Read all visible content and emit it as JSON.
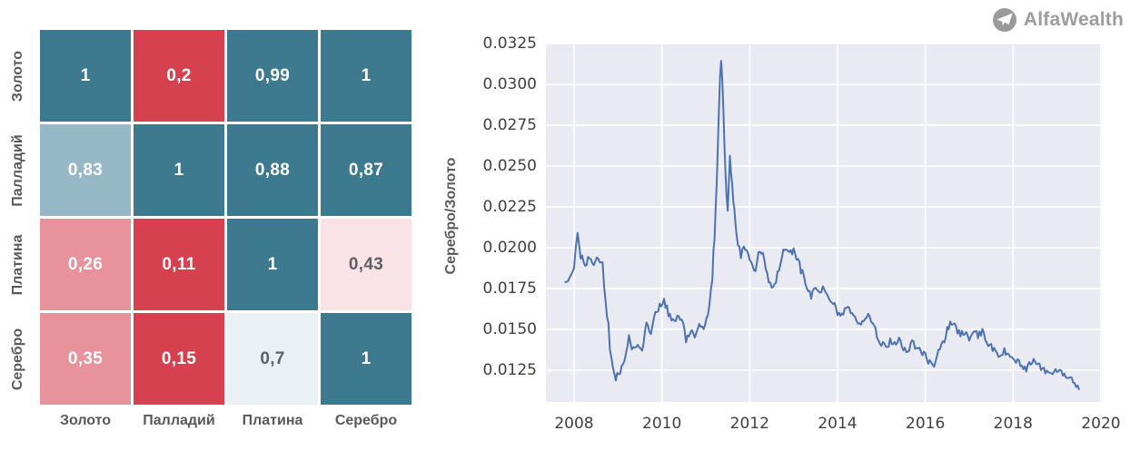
{
  "logo": {
    "text": "AlfaWealth",
    "icon": "paper-plane-icon",
    "circle_color": "#9a9a9a",
    "plane_color": "#ffffff",
    "plane_shadow_color": "#c9c9c9",
    "text_color": "#9d9d9d"
  },
  "heatmap_style": {
    "label_color": "#595959",
    "gap_color": "#ffffff"
  },
  "line_chart_style": {
    "plot_bg": "#eaeaf2",
    "grid_color": "#ffffff",
    "tick_color": "#3f3f3f",
    "axis_label_color": "#595959"
  },
  "chart_data": [
    {
      "type": "heatmap",
      "title": "",
      "rows": [
        "Золото",
        "Палладий",
        "Платина",
        "Серебро"
      ],
      "cols": [
        "Золото",
        "Палладий",
        "Платина",
        "Серебро"
      ],
      "values": [
        [
          1,
          0.2,
          0.99,
          1
        ],
        [
          0.83,
          1,
          0.88,
          0.87
        ],
        [
          0.26,
          0.11,
          1,
          0.43
        ],
        [
          0.35,
          0.15,
          0.7,
          1
        ]
      ],
      "display": [
        [
          "1",
          "0,2",
          "0,99",
          "1"
        ],
        [
          "0,83",
          "1",
          "0,88",
          "0,87"
        ],
        [
          "0,26",
          "0,11",
          "1",
          "0,43"
        ],
        [
          "0,35",
          "0,15",
          "0,7",
          "1"
        ]
      ],
      "cell_colors": [
        [
          "#3d7a90",
          "#d5414f",
          "#3d7a90",
          "#3d7a90"
        ],
        [
          "#97b9c7",
          "#3d7a90",
          "#3d7a90",
          "#3d7a90"
        ],
        [
          "#e8939c",
          "#d5414f",
          "#3d7a90",
          "#f9e3e7"
        ],
        [
          "#e8939c",
          "#d5414f",
          "#e9f1f4",
          "#3d7a90"
        ]
      ],
      "cell_text_colors": [
        [
          "#ffffff",
          "#ffffff",
          "#ffffff",
          "#ffffff"
        ],
        [
          "#ffffff",
          "#ffffff",
          "#ffffff",
          "#ffffff"
        ],
        [
          "#ffffff",
          "#ffffff",
          "#ffffff",
          "#5d6166"
        ],
        [
          "#ffffff",
          "#ffffff",
          "#5d6166",
          "#ffffff"
        ]
      ]
    },
    {
      "type": "line",
      "title": "",
      "xlabel": "",
      "ylabel": "Серебро/Золото",
      "legend": null,
      "grid": true,
      "line_color": "#4c72b0",
      "xlim": [
        2007.359,
        2020.021
      ],
      "ylim": [
        0.010556,
        0.0325
      ],
      "x_ticks": [
        2008,
        2010,
        2012,
        2014,
        2016,
        2018,
        2020
      ],
      "x_tick_labels": [
        "2008",
        "2010",
        "2012",
        "2014",
        "2016",
        "2018",
        "2020"
      ],
      "y_ticks": [
        0.0325,
        0.03,
        0.0275,
        0.025,
        0.0225,
        0.02,
        0.0175,
        0.015,
        0.0125
      ],
      "y_tick_labels": [
        "0.0325",
        "0.0300",
        "0.0275",
        "0.0250",
        "0.0225",
        "0.0200",
        "0.0175",
        "0.0150",
        "0.0125"
      ],
      "x": [
        2007.8,
        2007.9,
        2008.0,
        2008.08,
        2008.15,
        2008.25,
        2008.35,
        2008.45,
        2008.55,
        2008.65,
        2008.75,
        2008.85,
        2008.95,
        2009.05,
        2009.15,
        2009.25,
        2009.35,
        2009.45,
        2009.55,
        2009.65,
        2009.75,
        2009.85,
        2009.95,
        2010.05,
        2010.15,
        2010.25,
        2010.35,
        2010.45,
        2010.55,
        2010.65,
        2010.75,
        2010.85,
        2010.95,
        2011.05,
        2011.15,
        2011.2,
        2011.25,
        2011.3,
        2011.35,
        2011.4,
        2011.45,
        2011.5,
        2011.55,
        2011.6,
        2011.65,
        2011.7,
        2011.8,
        2011.9,
        2012.0,
        2012.1,
        2012.2,
        2012.3,
        2012.4,
        2012.5,
        2012.6,
        2012.7,
        2012.8,
        2012.9,
        2013.0,
        2013.1,
        2013.2,
        2013.3,
        2013.4,
        2013.5,
        2013.6,
        2013.7,
        2013.8,
        2013.9,
        2014.0,
        2014.1,
        2014.2,
        2014.3,
        2014.4,
        2014.5,
        2014.6,
        2014.7,
        2014.8,
        2014.9,
        2015.0,
        2015.1,
        2015.2,
        2015.3,
        2015.4,
        2015.5,
        2015.6,
        2015.7,
        2015.8,
        2015.9,
        2016.0,
        2016.1,
        2016.2,
        2016.3,
        2016.4,
        2016.5,
        2016.6,
        2016.7,
        2016.8,
        2016.9,
        2017.0,
        2017.1,
        2017.2,
        2017.3,
        2017.4,
        2017.5,
        2017.6,
        2017.7,
        2017.8,
        2017.9,
        2018.0,
        2018.1,
        2018.2,
        2018.3,
        2018.4,
        2018.5,
        2018.6,
        2018.7,
        2018.8,
        2018.9,
        2019.0,
        2019.1,
        2019.2,
        2019.3,
        2019.4,
        2019.5
      ],
      "y": [
        0.0178,
        0.0181,
        0.0186,
        0.021,
        0.0196,
        0.019,
        0.0194,
        0.0191,
        0.0193,
        0.0189,
        0.016,
        0.0128,
        0.0121,
        0.0124,
        0.013,
        0.0144,
        0.0137,
        0.014,
        0.0138,
        0.0152,
        0.0148,
        0.0158,
        0.0165,
        0.0168,
        0.016,
        0.0154,
        0.0158,
        0.0156,
        0.0144,
        0.015,
        0.0147,
        0.0152,
        0.015,
        0.0158,
        0.0185,
        0.0205,
        0.0245,
        0.029,
        0.0315,
        0.0285,
        0.024,
        0.0225,
        0.0256,
        0.024,
        0.0222,
        0.0205,
        0.0196,
        0.02,
        0.0192,
        0.0185,
        0.0195,
        0.0199,
        0.0183,
        0.0176,
        0.018,
        0.019,
        0.02,
        0.0196,
        0.0198,
        0.0192,
        0.0184,
        0.0177,
        0.0171,
        0.0175,
        0.0172,
        0.0176,
        0.017,
        0.0166,
        0.0161,
        0.0159,
        0.0164,
        0.0161,
        0.0157,
        0.0154,
        0.0157,
        0.016,
        0.0154,
        0.0146,
        0.0141,
        0.0139,
        0.0143,
        0.0141,
        0.0143,
        0.0139,
        0.0137,
        0.0142,
        0.0139,
        0.0136,
        0.0134,
        0.0129,
        0.0125,
        0.0135,
        0.0141,
        0.015,
        0.0155,
        0.015,
        0.0147,
        0.0149,
        0.0145,
        0.015,
        0.0146,
        0.0149,
        0.0143,
        0.0139,
        0.0136,
        0.0134,
        0.0137,
        0.0134,
        0.0132,
        0.013,
        0.0128,
        0.0126,
        0.0129,
        0.0132,
        0.0128,
        0.0125,
        0.0123,
        0.0124,
        0.0125,
        0.0123,
        0.0121,
        0.0122,
        0.0118,
        0.0114
      ]
    }
  ]
}
